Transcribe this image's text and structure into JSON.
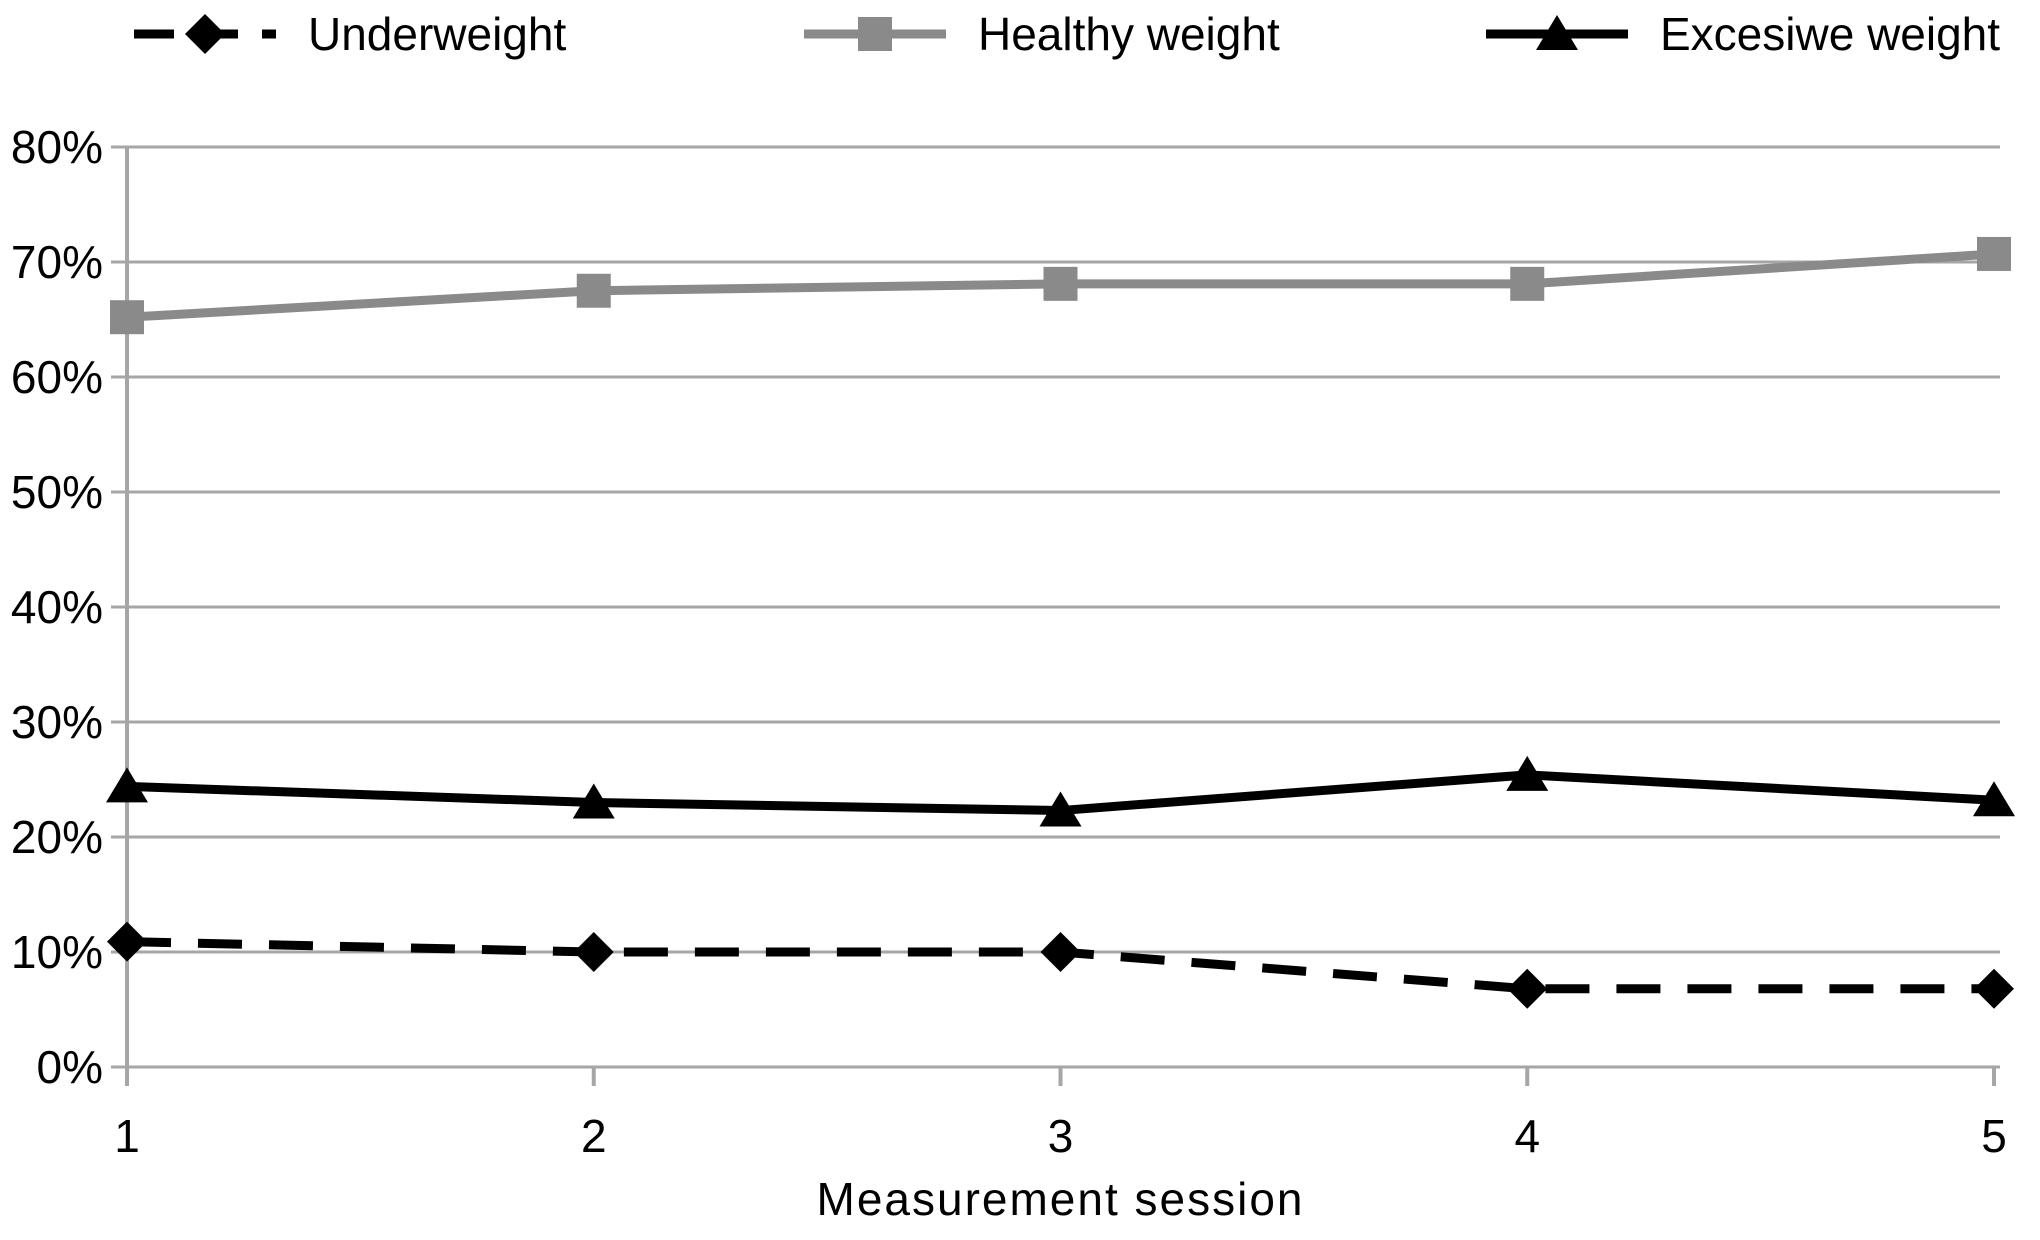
{
  "chart_data": {
    "type": "line",
    "title": "",
    "xlabel": "Measurement session",
    "ylabel": "",
    "x": [
      1,
      2,
      3,
      4,
      5
    ],
    "x_tick_labels": [
      "1",
      "2",
      "3",
      "4",
      "5"
    ],
    "y_axis": {
      "min": 0,
      "max": 80,
      "step": 10,
      "unit": "%"
    },
    "y_tick_labels": [
      "0%",
      "10%",
      "20%",
      "30%",
      "40%",
      "50%",
      "60%",
      "70%",
      "80%"
    ],
    "grid": true,
    "grid_color": "#a6a6a6",
    "axis_color": "#a6a6a6",
    "legend_position": "top",
    "series": [
      {
        "name": "Underweight",
        "values": [
          10.9,
          10.0,
          10.0,
          6.8,
          6.8
        ],
        "color": "#000000",
        "line_style": "dashed",
        "marker": "diamond"
      },
      {
        "name": "Healthy weight",
        "values": [
          65.2,
          67.5,
          68.1,
          68.1,
          70.7
        ],
        "color": "#8a8a8a",
        "line_style": "solid",
        "marker": "square"
      },
      {
        "name": "Excesiwe weight",
        "values": [
          24.4,
          23.0,
          22.3,
          25.4,
          23.2
        ],
        "color": "#000000",
        "line_style": "solid",
        "marker": "triangle"
      }
    ]
  }
}
